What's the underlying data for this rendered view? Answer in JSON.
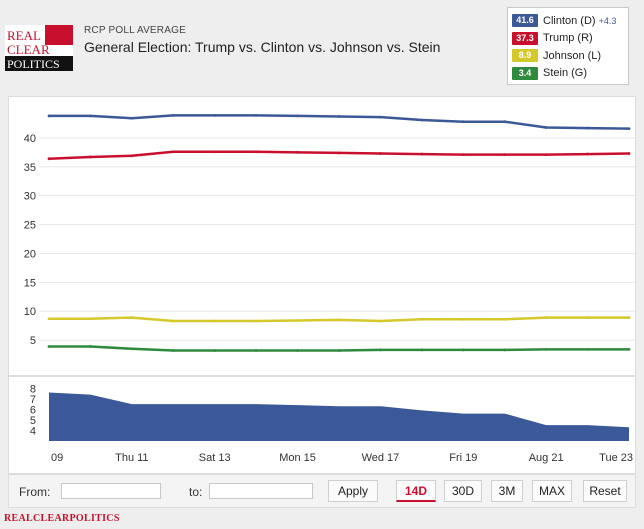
{
  "header": {
    "logo_text": [
      "REAL",
      "CLEAR",
      "POLITICS"
    ],
    "kicker": "RCP POLL AVERAGE",
    "title": "General Election: Trump vs. Clinton vs. Johnson vs. Stein"
  },
  "legend": {
    "items": [
      {
        "value": "41.6",
        "label": "Clinton (D)",
        "spread": "+4.3",
        "color": "#3b5998"
      },
      {
        "value": "37.3",
        "label": "Trump (R)",
        "spread": "",
        "color": "#c8102e"
      },
      {
        "value": "8.9",
        "label": "Johnson (L)",
        "spread": "",
        "color": "#d4c82a"
      },
      {
        "value": "3.4",
        "label": "Stein (G)",
        "spread": "",
        "color": "#2e8b3e"
      }
    ]
  },
  "chart_data": {
    "type": "line",
    "x": [
      "Aug 09",
      "Aug 10",
      "Aug 11",
      "Aug 12",
      "Aug 13",
      "Aug 14",
      "Aug 15",
      "Aug 16",
      "Aug 17",
      "Aug 18",
      "Aug 19",
      "Aug 20",
      "Aug 21",
      "Aug 22",
      "Aug 23"
    ],
    "x_tick_labels": [
      "09",
      "Thu 11",
      "Sat 13",
      "Mon 15",
      "Wed 17",
      "Fri 19",
      "Aug 21",
      "Tue 23"
    ],
    "x_tick_indices": [
      0,
      2,
      4,
      6,
      8,
      10,
      12,
      14
    ],
    "ylim": [
      0,
      45
    ],
    "y_ticks": [
      5,
      10,
      15,
      20,
      25,
      30,
      35,
      40
    ],
    "grid": true,
    "series": [
      {
        "name": "Clinton (D)",
        "color": "#3b5998",
        "values": [
          43.8,
          43.8,
          43.4,
          43.9,
          43.9,
          43.9,
          43.8,
          43.7,
          43.6,
          43.1,
          42.8,
          42.8,
          41.8,
          41.7,
          41.6
        ]
      },
      {
        "name": "Trump (R)",
        "color": "#c8102e",
        "values": [
          36.4,
          36.7,
          36.9,
          37.6,
          37.6,
          37.6,
          37.5,
          37.4,
          37.3,
          37.2,
          37.1,
          37.1,
          37.1,
          37.2,
          37.3
        ]
      },
      {
        "name": "Johnson (L)",
        "color": "#d4c82a",
        "values": [
          8.7,
          8.7,
          8.9,
          8.3,
          8.3,
          8.3,
          8.4,
          8.5,
          8.3,
          8.6,
          8.6,
          8.6,
          8.9,
          8.9,
          8.9
        ]
      },
      {
        "name": "Stein (G)",
        "color": "#2e8b3e",
        "values": [
          3.9,
          3.9,
          3.5,
          3.2,
          3.2,
          3.2,
          3.2,
          3.2,
          3.3,
          3.3,
          3.3,
          3.3,
          3.4,
          3.4,
          3.4
        ]
      }
    ],
    "spread": {
      "name": "Spread",
      "color": "#3b5998",
      "ylim": [
        3,
        8.5
      ],
      "y_ticks": [
        4,
        5,
        6,
        7,
        8
      ],
      "values": [
        7.6,
        7.4,
        6.5,
        6.5,
        6.5,
        6.5,
        6.4,
        6.3,
        6.3,
        5.9,
        5.6,
        5.6,
        4.5,
        4.5,
        4.3
      ]
    }
  },
  "controls": {
    "from_label": "From:",
    "to_label": "to:",
    "from_value": "",
    "to_value": "",
    "apply_label": "Apply",
    "range_buttons": [
      "14D",
      "30D",
      "3M",
      "MAX"
    ],
    "active_range": "14D",
    "reset_label": "Reset"
  },
  "footer": {
    "brand": "REALCLEARPOLITICS"
  }
}
